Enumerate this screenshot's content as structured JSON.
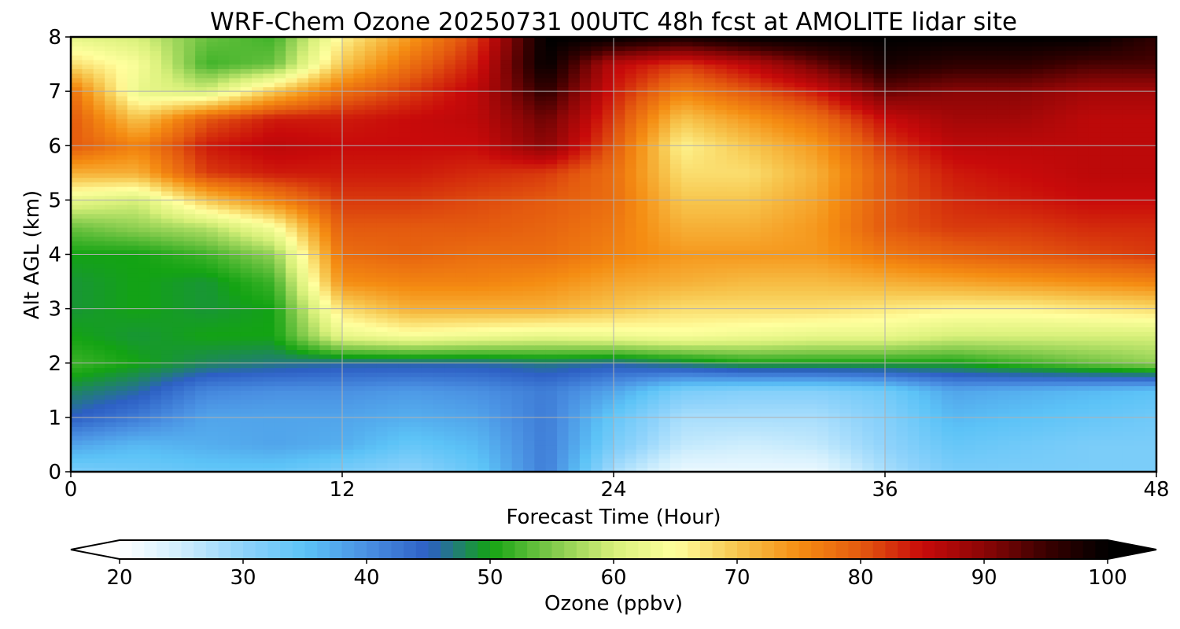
{
  "chart_data": {
    "type": "heatmap",
    "title": "WRF-Chem Ozone  20250731 00UTC 48h fcst at AMOLITE lidar site",
    "xlabel": "Forecast Time (Hour)",
    "ylabel": "Alt AGL (km)",
    "xlim": [
      0,
      48
    ],
    "ylim": [
      0,
      8
    ],
    "xticks": [
      "0",
      "12",
      "24",
      "36",
      "48"
    ],
    "yticks": [
      "0",
      "1",
      "2",
      "3",
      "4",
      "5",
      "6",
      "7",
      "8"
    ],
    "grid": true,
    "colorbar": {
      "label": "Ozone  (ppbv)",
      "range": [
        20,
        100
      ],
      "ticks": [
        "20",
        "30",
        "40",
        "50",
        "60",
        "70",
        "80",
        "90",
        "100"
      ],
      "extend": "both",
      "colors": [
        "#ffffff",
        "#cfeefd",
        "#8fd3fb",
        "#5cc3f7",
        "#4a90e2",
        "#2d5fc4",
        "#13a313",
        "#7fc94a",
        "#d8f07a",
        "#ffff9e",
        "#f7c64e",
        "#f58d12",
        "#e45a0f",
        "#c80a0a",
        "#8b0606",
        "#3a0000",
        "#000000"
      ]
    },
    "times": [
      0,
      3,
      6,
      9,
      12,
      15,
      18,
      21,
      24,
      27,
      30,
      33,
      36,
      39,
      42,
      45,
      48
    ],
    "altitudes": [
      0,
      0.5,
      1,
      1.5,
      2,
      2.5,
      3,
      3.5,
      4,
      4.5,
      5,
      5.5,
      6,
      6.5,
      7,
      7.5,
      8
    ],
    "ozone_ppbv": [
      [
        32,
        33,
        34,
        34,
        32,
        30,
        34,
        42,
        28,
        22,
        22,
        22,
        28,
        32,
        32,
        32,
        32
      ],
      [
        38,
        36,
        37,
        38,
        37,
        34,
        36,
        42,
        32,
        26,
        25,
        26,
        30,
        34,
        33,
        32,
        32
      ],
      [
        45,
        42,
        38,
        38,
        38,
        37,
        38,
        42,
        34,
        28,
        28,
        28,
        31,
        36,
        35,
        34,
        33
      ],
      [
        48,
        46,
        41,
        40,
        40,
        39,
        40,
        42,
        38,
        32,
        31,
        31,
        33,
        38,
        37,
        36,
        35
      ],
      [
        52,
        50,
        48,
        47,
        46,
        46,
        46,
        47,
        46,
        48,
        50,
        50,
        50,
        50,
        52,
        54,
        56
      ],
      [
        50,
        49,
        50,
        50,
        62,
        64,
        63,
        62,
        63,
        64,
        63,
        62,
        62,
        60,
        60,
        60,
        60
      ],
      [
        49,
        50,
        49,
        50,
        68,
        72,
        72,
        72,
        70,
        68,
        68,
        68,
        67,
        66,
        66,
        67,
        68
      ],
      [
        49,
        50,
        49,
        52,
        75,
        76,
        76,
        75,
        73,
        72,
        71,
        71,
        72,
        73,
        74,
        75,
        76
      ],
      [
        50,
        50,
        52,
        56,
        78,
        79,
        78,
        78,
        76,
        74,
        74,
        74,
        77,
        79,
        80,
        81,
        82
      ],
      [
        54,
        56,
        58,
        64,
        80,
        80,
        80,
        79,
        77,
        72,
        72,
        74,
        80,
        82,
        82,
        83,
        83
      ],
      [
        62,
        60,
        70,
        76,
        82,
        82,
        81,
        80,
        78,
        70,
        70,
        73,
        80,
        83,
        84,
        85,
        85
      ],
      [
        72,
        72,
        82,
        84,
        84,
        84,
        83,
        82,
        78,
        68,
        68,
        72,
        80,
        84,
        85,
        86,
        86
      ],
      [
        80,
        76,
        84,
        86,
        85,
        85,
        85,
        90,
        80,
        66,
        70,
        74,
        82,
        86,
        86,
        86,
        86
      ],
      [
        80,
        70,
        80,
        84,
        84,
        85,
        86,
        92,
        82,
        70,
        74,
        78,
        85,
        88,
        88,
        86,
        86
      ],
      [
        78,
        62,
        60,
        70,
        78,
        82,
        86,
        96,
        84,
        76,
        80,
        84,
        92,
        90,
        90,
        88,
        88
      ],
      [
        68,
        64,
        52,
        54,
        70,
        78,
        84,
        100,
        86,
        82,
        86,
        92,
        98,
        96,
        96,
        94,
        94
      ],
      [
        62,
        60,
        54,
        52,
        66,
        74,
        82,
        100,
        100,
        98,
        100,
        100,
        100,
        100,
        100,
        100,
        96
      ]
    ]
  }
}
